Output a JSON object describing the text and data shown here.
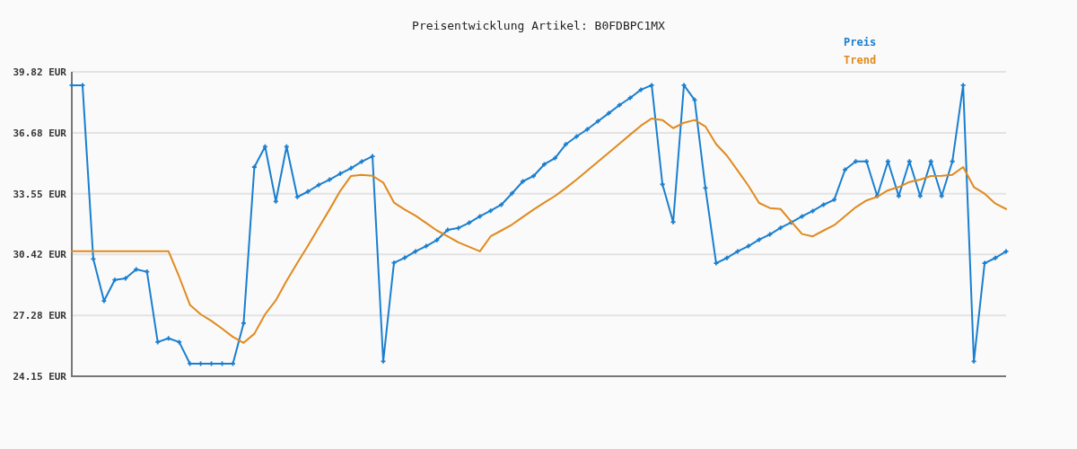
{
  "chart_data": {
    "type": "line",
    "title": "Preisentwicklung Artikel: B0FDBPC1MX",
    "categories": [
      null,
      null,
      null,
      null,
      null,
      null,
      null,
      null,
      null,
      null,
      null,
      null,
      null,
      null,
      null,
      null,
      null,
      null,
      null,
      null,
      null,
      null,
      null,
      null,
      null,
      null,
      null,
      null,
      null,
      null,
      null,
      null,
      null,
      null,
      null,
      null,
      null,
      null,
      null,
      null,
      null,
      null,
      null,
      null,
      null,
      null,
      null,
      null,
      null,
      null,
      null,
      null,
      null,
      null,
      null,
      null,
      null,
      null,
      null,
      null,
      null,
      null,
      null,
      null,
      null,
      null,
      null,
      null,
      null,
      null,
      null,
      null,
      null,
      null,
      null,
      null,
      null,
      null,
      null,
      null,
      null,
      null,
      null,
      null,
      null,
      null,
      null,
      null
    ],
    "series": [
      {
        "name": "Preis",
        "color": "#1a7fcf",
        "marker": "cross",
        "values": [
          39.13,
          39.13,
          30.19,
          28.03,
          29.11,
          29.19,
          29.65,
          29.53,
          25.91,
          26.1,
          25.91,
          24.8,
          24.8,
          24.8,
          24.8,
          24.8,
          26.88,
          34.92,
          35.97,
          33.15,
          35.97,
          33.38,
          33.66,
          34.0,
          34.27,
          34.58,
          34.86,
          35.2,
          35.47,
          24.92,
          29.99,
          30.25,
          30.58,
          30.85,
          31.16,
          31.68,
          31.78,
          32.05,
          32.38,
          32.67,
          32.98,
          33.57,
          34.18,
          34.46,
          35.06,
          35.38,
          36.09,
          36.49,
          36.86,
          37.28,
          37.69,
          38.11,
          38.48,
          38.9,
          39.13,
          34.03,
          32.09,
          39.13,
          38.37,
          33.84,
          29.97,
          30.24,
          30.58,
          30.85,
          31.18,
          31.45,
          31.79,
          32.07,
          32.38,
          32.66,
          32.98,
          33.24,
          34.78,
          35.21,
          35.21,
          33.43,
          35.21,
          33.43,
          35.21,
          33.43,
          35.21,
          33.43,
          35.21,
          39.13,
          24.92,
          29.97,
          30.24,
          30.58
        ]
      },
      {
        "name": "Trend",
        "color": "#e08a1e",
        "marker": "none",
        "values": [
          30.59,
          30.59,
          30.59,
          30.59,
          30.59,
          30.59,
          30.59,
          30.59,
          30.59,
          30.59,
          29.27,
          27.83,
          27.34,
          27.0,
          26.6,
          26.18,
          25.87,
          26.34,
          27.34,
          28.06,
          29.06,
          29.99,
          30.88,
          31.81,
          32.73,
          33.69,
          34.46,
          34.52,
          34.47,
          34.12,
          33.09,
          32.73,
          32.42,
          32.04,
          31.65,
          31.35,
          31.04,
          30.81,
          30.58,
          31.35,
          31.65,
          31.96,
          32.35,
          32.73,
          33.09,
          33.43,
          33.84,
          34.27,
          34.74,
          35.2,
          35.66,
          36.12,
          36.59,
          37.05,
          37.42,
          37.34,
          36.92,
          37.2,
          37.34,
          37.01,
          36.1,
          35.51,
          34.74,
          33.96,
          33.07,
          32.81,
          32.76,
          32.11,
          31.47,
          31.35,
          31.65,
          31.93,
          32.39,
          32.85,
          33.2,
          33.39,
          33.72,
          33.89,
          34.15,
          34.27,
          34.46,
          34.47,
          34.52,
          34.92,
          33.89,
          33.55,
          33.04,
          32.76
        ]
      }
    ],
    "ylim": [
      24.15,
      39.82
    ],
    "yticks": [
      {
        "value": 24.15,
        "label": "24.15 EUR"
      },
      {
        "value": 27.28,
        "label": "27.28 EUR"
      },
      {
        "value": 30.42,
        "label": "30.42 EUR"
      },
      {
        "value": 33.55,
        "label": "33.55 EUR"
      },
      {
        "value": 36.68,
        "label": "36.68 EUR"
      },
      {
        "value": 39.82,
        "label": "39.82 EUR"
      }
    ],
    "grid": "y",
    "legend": "top right",
    "tick_labels": "y"
  }
}
